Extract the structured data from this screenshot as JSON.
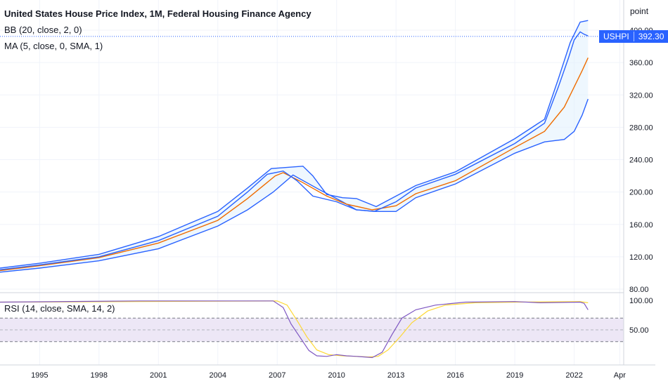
{
  "title": "United States House Price Index, 1M, Federal Housing Finance Agency",
  "bb_label": "BB (20, close, 2, 0)",
  "ma_label": "MA (5, close, 0, SMA, 1)",
  "rsi_label": "RSI (14, close, SMA, 14, 2)",
  "price_tag": {
    "symbol": "USHPI",
    "value": "392.30"
  },
  "price_axis_unit": "point",
  "colors": {
    "price": "#2962ff",
    "bb_upper": "#2962ff",
    "bb_lower": "#2962ff",
    "bb_fill": "#e3f2fd",
    "ma": "#ef6c00",
    "rsi": "#7e57c2",
    "rsi_ma": "#fdd835",
    "rsi_band": "#ede7f6"
  },
  "chart_data": [
    {
      "type": "line",
      "title": "United States House Price Index, 1M, Federal Housing Finance Agency",
      "x_ticks": [
        "1995",
        "1998",
        "2001",
        "2004",
        "2007",
        "2010",
        "2013",
        "2016",
        "2019",
        "2022",
        "Apr"
      ],
      "y_ticks": [
        80,
        120,
        160,
        200,
        240,
        280,
        320,
        360,
        400
      ],
      "ylim": [
        80,
        420
      ],
      "xlim": [
        1993.0,
        2024.5
      ],
      "series": [
        {
          "name": "USHPI",
          "x": [
            1993,
            1995,
            1998,
            2001,
            2004,
            2005.5,
            2006.5,
            2007.3,
            2008.0,
            2008.8,
            2010,
            2011,
            2011.9,
            2013,
            2014,
            2016,
            2019,
            2020.5,
            2021.2,
            2021.7,
            2022.0,
            2022.3,
            2022.5,
            2022.7
          ],
          "y": [
            104,
            110,
            120,
            140,
            170,
            200,
            222,
            226,
            214,
            195,
            188,
            178,
            176,
            188,
            205,
            222,
            260,
            285,
            330,
            365,
            388,
            398,
            395,
            393
          ]
        },
        {
          "name": "BB upper",
          "x": [
            1993,
            1995,
            1998,
            2001,
            2004,
            2005.5,
            2006.7,
            2008.3,
            2008.8,
            2009.5,
            2010.3,
            2011,
            2012,
            2013,
            2014,
            2016,
            2019,
            2020.5,
            2021.2,
            2021.8,
            2022.3,
            2022.7
          ],
          "y": [
            106,
            112,
            123,
            145,
            176,
            205,
            229,
            232,
            220,
            197,
            193,
            192,
            182,
            195,
            208,
            225,
            266,
            290,
            340,
            385,
            410,
            412
          ]
        },
        {
          "name": "BB lower",
          "x": [
            1993,
            1995,
            1998,
            2001,
            2004,
            2005.5,
            2006.8,
            2007.8,
            2009.2,
            2010.3,
            2011,
            2012,
            2013,
            2014,
            2016,
            2019,
            2020.5,
            2021.5,
            2022.0,
            2022.4,
            2022.7
          ],
          "y": [
            101,
            106,
            115,
            130,
            158,
            178,
            200,
            221,
            202,
            188,
            178,
            176,
            176,
            193,
            210,
            248,
            262,
            265,
            275,
            295,
            315
          ]
        },
        {
          "name": "MA",
          "x": [
            1993,
            1995,
            1998,
            2001,
            2004,
            2005.5,
            2006.9,
            2007.3,
            2008.2,
            2009.5,
            2010.5,
            2011.8,
            2013,
            2014,
            2016,
            2019,
            2020.5,
            2021.5,
            2022.0,
            2022.4,
            2022.7
          ],
          "y": [
            103,
            109,
            119,
            137,
            165,
            192,
            220,
            224,
            213,
            195,
            185,
            178,
            183,
            198,
            214,
            255,
            275,
            305,
            330,
            350,
            366
          ]
        }
      ]
    },
    {
      "type": "line",
      "title": "RSI (14, close, SMA, 14, 2)",
      "y_ticks": [
        50,
        100
      ],
      "ylim": [
        0,
        100
      ],
      "bands": [
        30,
        50,
        70
      ],
      "series": [
        {
          "name": "RSI",
          "x": [
            1993,
            2000,
            2006.8,
            2007.3,
            2007.7,
            2008.2,
            2008.6,
            2009.0,
            2009.5,
            2010.0,
            2010.5,
            2011.0,
            2011.4,
            2011.8,
            2012.3,
            2012.8,
            2013.3,
            2014.0,
            2015.0,
            2016.5,
            2019,
            2020.3,
            2022.3,
            2022.5,
            2022.7
          ],
          "y": [
            97,
            99,
            99,
            88,
            60,
            35,
            15,
            6,
            5,
            8,
            6,
            5,
            4,
            3,
            12,
            42,
            70,
            84,
            92,
            97,
            98,
            96,
            97,
            95,
            84
          ]
        },
        {
          "name": "RSI MA",
          "x": [
            1993,
            2000,
            2007.0,
            2007.5,
            2008.0,
            2008.5,
            2009.0,
            2009.6,
            2010.3,
            2011.0,
            2011.6,
            2012.1,
            2012.6,
            2013.2,
            2013.8,
            2014.6,
            2015.5,
            2017,
            2019,
            2022.3,
            2022.7
          ],
          "y": [
            97,
            98,
            99,
            92,
            66,
            38,
            16,
            8,
            6,
            5,
            4,
            5,
            16,
            38,
            62,
            82,
            92,
            96,
            97,
            98,
            96
          ]
        }
      ]
    }
  ]
}
